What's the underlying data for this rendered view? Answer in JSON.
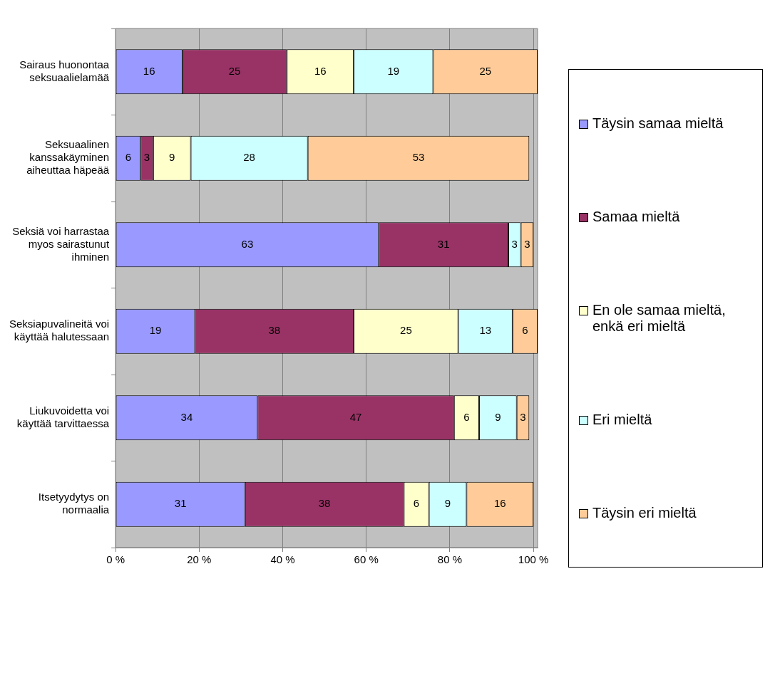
{
  "chart_data": {
    "type": "bar",
    "orientation": "horizontal",
    "stacked": true,
    "data_labels": true,
    "grid": "x",
    "legend": "right",
    "categories": [
      "Sairaus huonontaa seksuaalielamää",
      "Seksuaalinen kanssakäyminen aiheuttaa häpeää",
      "Seksiä voi harrastaa myos sairastunut ihminen",
      "Seksiapuvalineitä voi käyttää halutessaan",
      "Liukuvoidetta voi käyttää tarvittaessa",
      "Itsetyydytys on normaalia"
    ],
    "series": [
      {
        "name": "Täysin samaa mieltä",
        "color": "#9999ff",
        "values": [
          16,
          6,
          63,
          19,
          34,
          31
        ]
      },
      {
        "name": "Samaa mieltä",
        "color": "#993366",
        "values": [
          25,
          3,
          31,
          38,
          47,
          38
        ]
      },
      {
        "name": "En ole samaa mieltä, enkä eri mieltä",
        "color": "#ffffcc",
        "values": [
          16,
          9,
          null,
          25,
          6,
          6
        ]
      },
      {
        "name": "Eri mieltä",
        "color": "#ccffff",
        "values": [
          19,
          28,
          3,
          13,
          9,
          9
        ]
      },
      {
        "name": "Täysin eri mieltä",
        "color": "#ffcc99",
        "values": [
          25,
          53,
          3,
          6,
          3,
          16
        ]
      }
    ],
    "xlim": [
      0,
      101
    ],
    "xticks": [
      {
        "value": 0,
        "label": "0 %"
      },
      {
        "value": 20,
        "label": "20 %"
      },
      {
        "value": 40,
        "label": "40 %"
      },
      {
        "value": 60,
        "label": "60 %"
      },
      {
        "value": 80,
        "label": "80 %"
      },
      {
        "value": 100,
        "label": "100 %"
      }
    ]
  }
}
